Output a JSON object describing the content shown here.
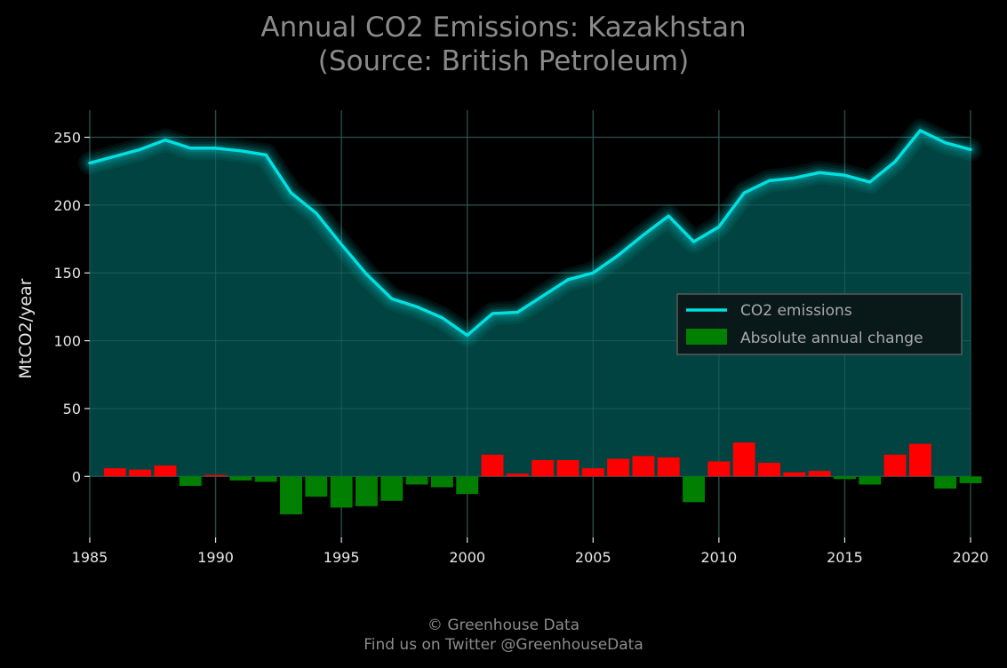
{
  "header": {
    "title_line1": "Annual CO2 Emissions: Kazakhstan",
    "title_line2": "(Source: British Petroleum)"
  },
  "footer": {
    "line1": "© Greenhouse Data",
    "line2": "Find us on Twitter @GreenhouseData"
  },
  "colors": {
    "line": "#00e0e0",
    "area": "#004a47",
    "positive_change": "#ff0000",
    "negative_change": "#007f00",
    "grid": "#2a2a2a"
  },
  "chart_data": {
    "type": "line",
    "title": "Annual CO2 Emissions: Kazakhstan\n(Source: British Petroleum)",
    "ylabel": "MtCO2/year",
    "xlabel": "",
    "xlim": [
      1985,
      2020
    ],
    "ylim": [
      -45,
      270
    ],
    "xticks": [
      1985,
      1990,
      1995,
      2000,
      2005,
      2010,
      2015,
      2020
    ],
    "yticks": [
      0,
      50,
      100,
      150,
      200,
      250
    ],
    "grid": true,
    "legend_position": "center-right",
    "x": [
      1985,
      1986,
      1987,
      1988,
      1989,
      1990,
      1991,
      1992,
      1993,
      1994,
      1995,
      1996,
      1997,
      1998,
      1999,
      2000,
      2001,
      2002,
      2003,
      2004,
      2005,
      2006,
      2007,
      2008,
      2009,
      2010,
      2011,
      2012,
      2013,
      2014,
      2015,
      2016,
      2017,
      2018,
      2019,
      2020
    ],
    "series": [
      {
        "name": "CO2 emissions",
        "type": "line",
        "values": [
          231,
          236,
          241,
          248,
          242,
          242,
          240,
          237,
          209,
          194,
          171,
          149,
          131,
          125,
          117,
          104,
          120,
          121,
          133,
          145,
          150,
          163,
          178,
          192,
          173,
          184,
          209,
          218,
          220,
          224,
          222,
          217,
          232,
          255,
          246,
          241
        ]
      },
      {
        "name": "Absolute annual change",
        "type": "bar",
        "values": [
          null,
          6,
          5,
          8,
          -7,
          1,
          -3,
          -4,
          -28,
          -15,
          -23,
          -22,
          -18,
          -6,
          -8,
          -13,
          16,
          2,
          12,
          12,
          6,
          13,
          15,
          14,
          -19,
          11,
          25,
          10,
          3,
          4,
          -2,
          -6,
          16,
          24,
          -9,
          -5
        ]
      }
    ]
  }
}
